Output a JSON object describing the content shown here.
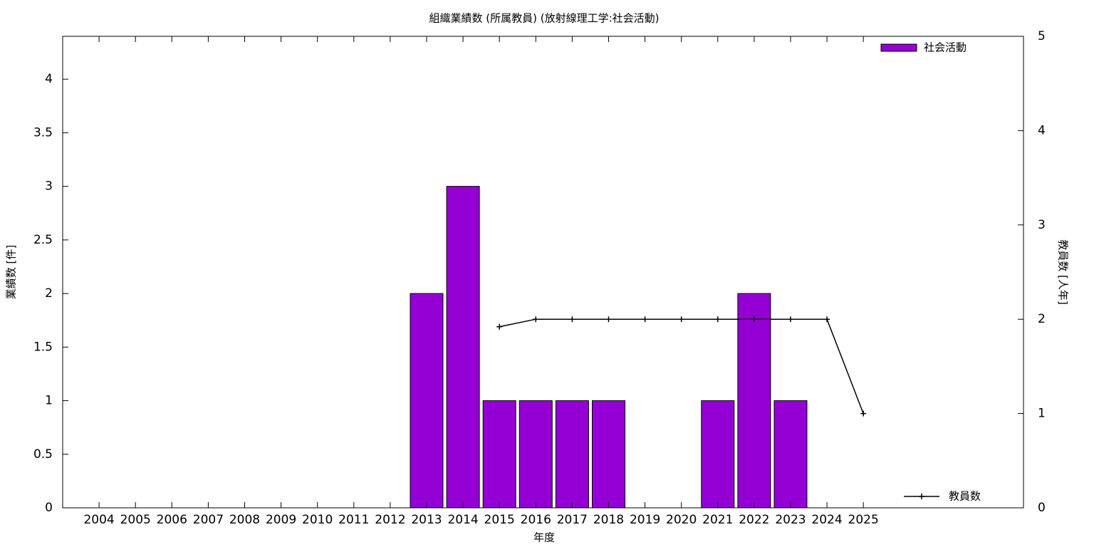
{
  "chart_data": {
    "type": "bar",
    "title": "組織業績数 (所属教員) (放射線理工学:社会活動)",
    "x_label": "年度",
    "y_label": "業績数 [件]",
    "y2_label": "教員数 [人年]",
    "x": [
      2004,
      2005,
      2006,
      2007,
      2008,
      2009,
      2010,
      2011,
      2012,
      2013,
      2014,
      2015,
      2016,
      2017,
      2018,
      2019,
      2020,
      2021,
      2022,
      2023,
      2024,
      2025
    ],
    "xlim": [
      2003,
      2029.4
    ],
    "xticks": [
      2004,
      2005,
      2006,
      2007,
      2008,
      2009,
      2010,
      2011,
      2012,
      2013,
      2014,
      2015,
      2016,
      2017,
      2018,
      2019,
      2020,
      2021,
      2022,
      2023,
      2024,
      2025
    ],
    "ylim": [
      0,
      4.4
    ],
    "yticks": [
      0,
      0.5,
      1,
      1.5,
      2,
      2.5,
      3,
      3.5,
      4
    ],
    "y2lim": [
      0,
      5
    ],
    "y2ticks": [
      0,
      1,
      2,
      3,
      4,
      5
    ],
    "series": [
      {
        "name": "社会活動",
        "type": "bar",
        "color": "#9400d3",
        "legend": "top-right",
        "values": [
          0,
          0,
          0,
          0,
          0,
          0,
          0,
          0,
          0,
          2,
          3,
          1,
          1,
          1,
          1,
          0,
          0,
          1,
          2,
          1,
          0,
          0
        ]
      },
      {
        "name": "教員数",
        "type": "line",
        "color": "#000000",
        "axis": "y2",
        "legend": "bottom-right",
        "marker": "plus",
        "values": [
          null,
          null,
          null,
          null,
          null,
          null,
          null,
          null,
          null,
          null,
          null,
          1.92,
          2,
          2,
          2,
          2,
          2,
          2,
          2,
          2,
          2,
          1
        ]
      }
    ]
  }
}
